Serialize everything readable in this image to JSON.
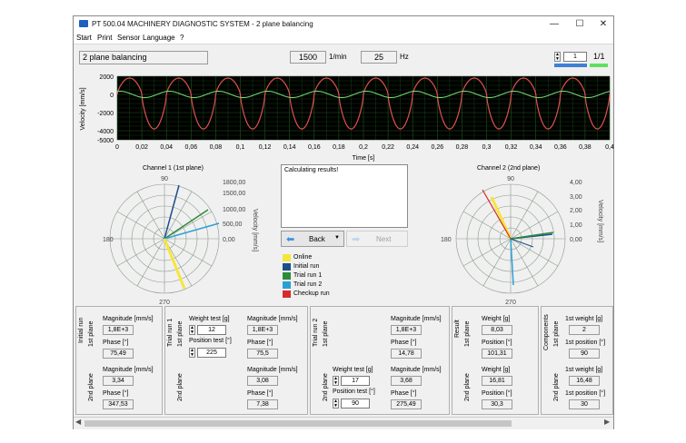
{
  "window": {
    "title": "PT 500.04 MACHINERY DIAGNOSTIC SYSTEM - 2 plane balancing",
    "minimize": "—",
    "maximize": "☐",
    "close": "✕"
  },
  "menu": [
    "Start",
    "Print",
    "Sensor",
    "Language",
    "?"
  ],
  "header": {
    "mode": "2 plane balancing",
    "speed": "1500",
    "speed_unit": "1/min",
    "freq": "25",
    "freq_unit": "Hz",
    "page_num": "1",
    "page_frac": "1/1"
  },
  "timeplot": {
    "ylabel": "Velocity [mm/s]",
    "xlabel": "Time [s]",
    "yticks": [
      "2000",
      "0",
      "-2000",
      "-4000",
      "-5000"
    ],
    "xticks": [
      "0",
      "0,02",
      "0,04",
      "0,06",
      "0,08",
      "0,1",
      "0,12",
      "0,14",
      "0,16",
      "0,18",
      "0,2",
      "0,22",
      "0,24",
      "0,26",
      "0,28",
      "0,3",
      "0,32",
      "0,34",
      "0,36",
      "0,38",
      "0,4"
    ]
  },
  "chart_data": [
    {
      "type": "line",
      "xlabel": "Time [s]",
      "ylabel": "Velocity [mm/s]",
      "xlim": [
        0,
        0.4
      ],
      "ylim": [
        -5000,
        2000
      ],
      "series": [
        {
          "color": "#e05050",
          "frequency_hz": 25,
          "approx_peak": 1800,
          "approx_trough": -3800
        },
        {
          "color": "#70e070",
          "frequency_hz": 25,
          "approx_amplitude": 350
        }
      ]
    }
  ],
  "channel1": {
    "title": "Channel 1 (1st plane)",
    "angle_labels": [
      "90",
      "180",
      "270"
    ],
    "scale_labels": [
      "1800,00",
      "1500,00",
      "1000,00",
      "500,00",
      "0,00"
    ],
    "axis_label": "Velocity [mm/s]"
  },
  "channel2": {
    "title": "Channel 2 (2nd plane)",
    "angle_labels": [
      "90",
      "180",
      "270"
    ],
    "scale_labels": [
      "4,00",
      "3,00",
      "2,00",
      "1,00",
      "0,00"
    ],
    "axis_label": "Velocity [mm/s]"
  },
  "message": "Calculating results!",
  "nav": {
    "back": "Back",
    "next": "Next"
  },
  "legend": [
    {
      "label": "Online",
      "color": "#f5e63a"
    },
    {
      "label": "Initial run",
      "color": "#1a4f8a"
    },
    {
      "label": "Trial run 1",
      "color": "#2e8b3a"
    },
    {
      "label": "Trial run 2",
      "color": "#2a9fd6"
    },
    {
      "label": "Checkup run",
      "color": "#d82b2b"
    }
  ],
  "initial_run": {
    "title": "Initial run",
    "plane1_label": "1st plane",
    "plane2_label": "2nd plane",
    "mag_label": "Magnitude [mm/s]",
    "phase_label": "Phase [°]",
    "mag1": "1,8E+3",
    "phase1": "75,49",
    "mag2": "3,34",
    "phase2": "347,53"
  },
  "trial_run1": {
    "title": "Trial run 1",
    "plane1_label": "1st plane",
    "plane2_label": "2nd plane",
    "weight_label": "Weight test [g]",
    "position_label": "Position test [°]",
    "weight": "12",
    "position": "225",
    "mag_label": "Magnitude [mm/s]",
    "phase_label": "Phase [°]",
    "mag1": "1,8E+3",
    "phase1": "75,5",
    "mag2": "3,08",
    "phase2": "7,38"
  },
  "trial_run2": {
    "title": "Trial run 2",
    "plane1_label": "1st plane",
    "plane2_label": "2nd plane",
    "weight_label": "Weight test [g]",
    "position_label": "Position test [°]",
    "weight": "17",
    "position": "90",
    "mag_label": "Magnitude [mm/s]",
    "phase_label": "Phase [°]",
    "mag1": "1,8E+3",
    "phase1": "14,78",
    "mag2": "3,68",
    "phase2": "275,49"
  },
  "result": {
    "title": "Result",
    "plane1_label": "1st plane",
    "plane2_label": "2nd plane",
    "weight_label": "Weight [g]",
    "position_label": "Position [°]",
    "weight1": "8,03",
    "position1": "101,31",
    "weight2": "16,81",
    "position2": "30,3"
  },
  "components": {
    "title": "Components",
    "plane1_label": "1st plane",
    "plane2_label": "2nd plane",
    "weight_label": "1st weight [g]",
    "position_label": "1st position [°]",
    "weight1": "2",
    "position1": "90",
    "weight2": "16,48",
    "position2": "30"
  }
}
